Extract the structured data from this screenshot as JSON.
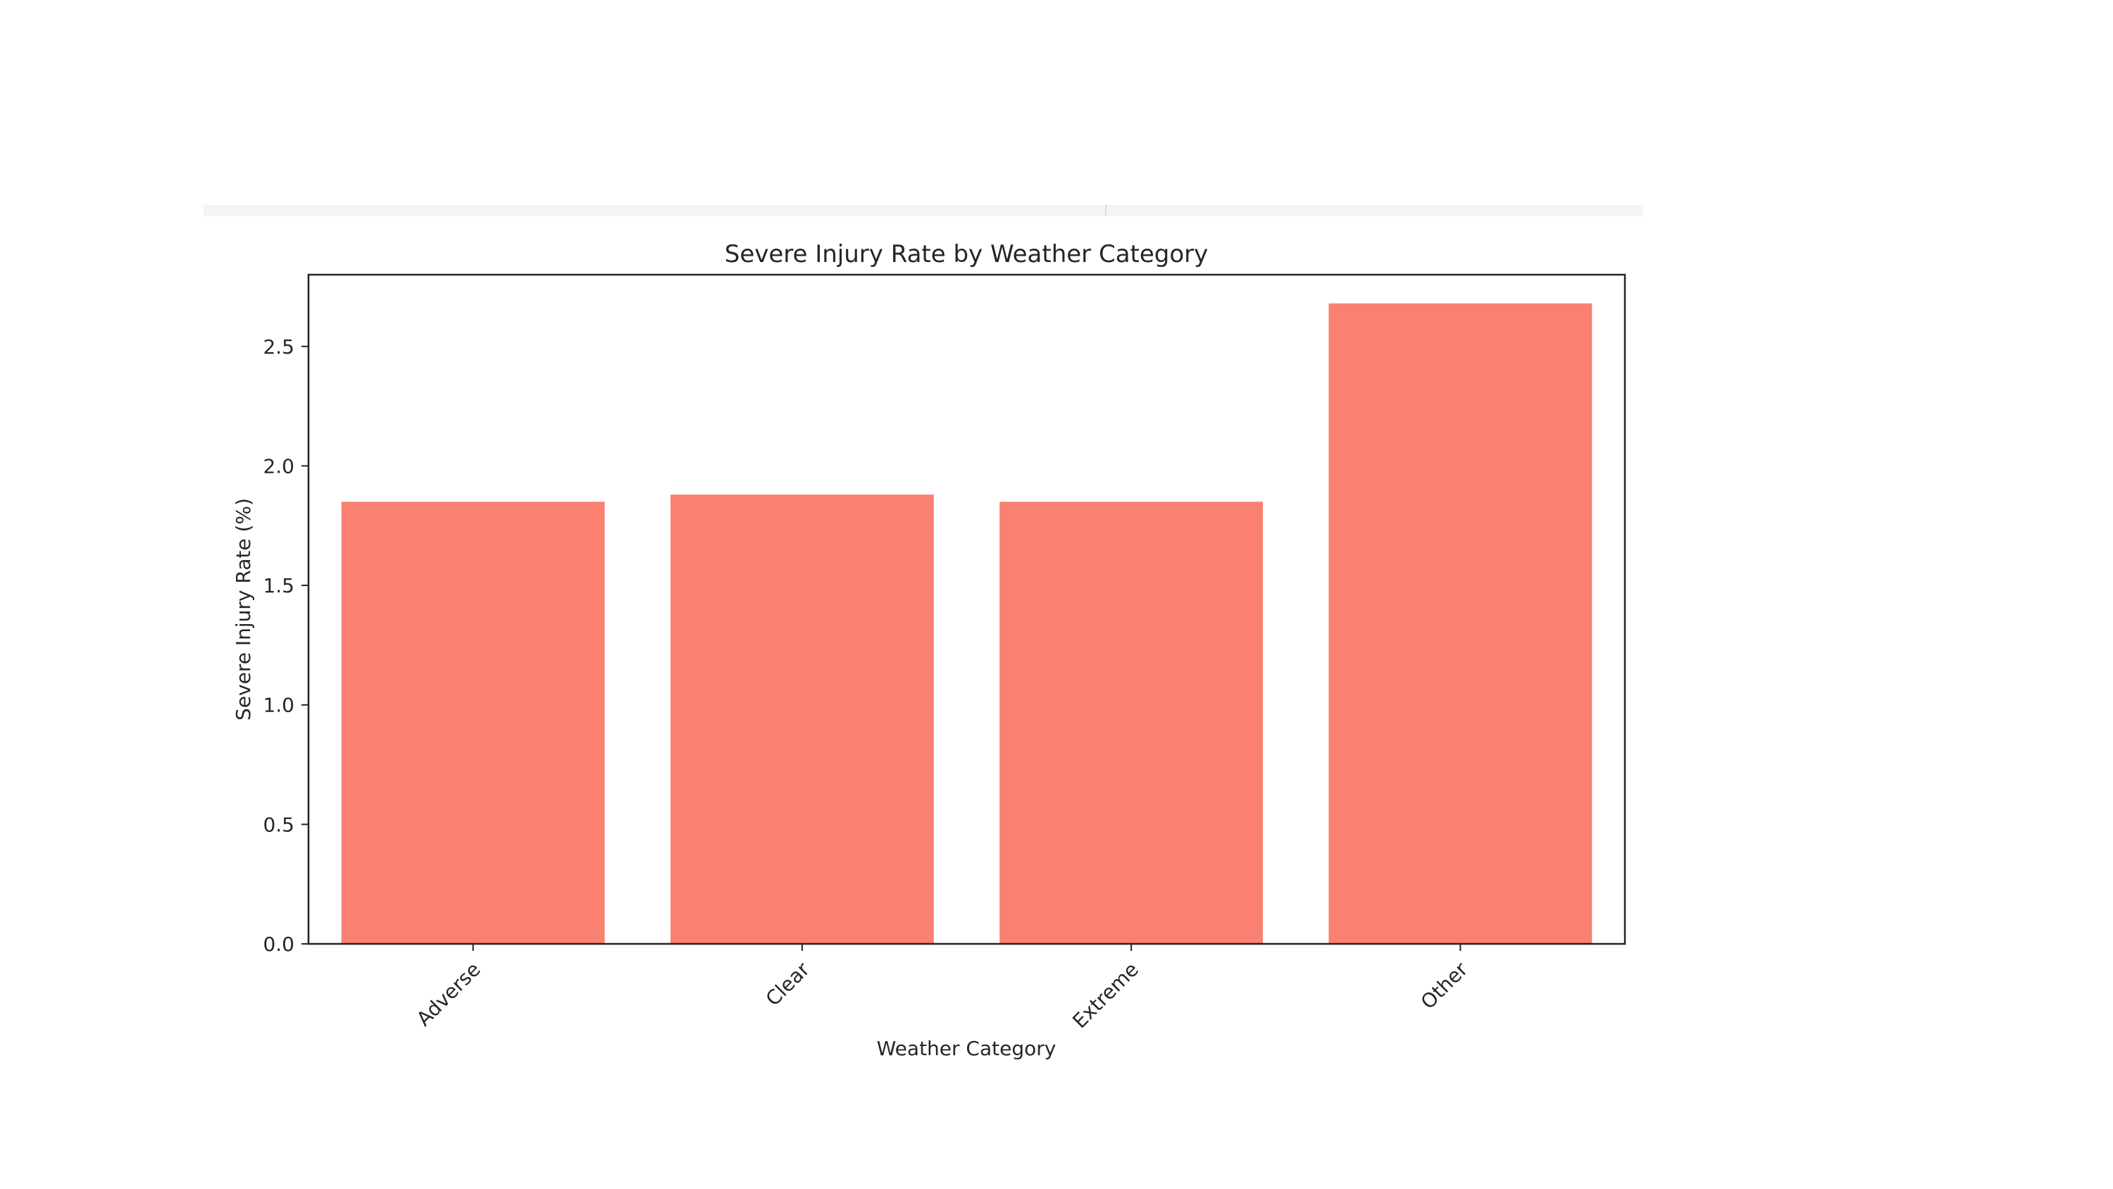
{
  "chart_data": {
    "type": "bar",
    "title": "Severe Injury Rate by Weather Category",
    "xlabel": "Weather Category",
    "ylabel": "Severe Injury Rate (%)",
    "categories": [
      "Adverse",
      "Clear",
      "Extreme",
      "Other"
    ],
    "values": [
      1.85,
      1.88,
      1.85,
      2.68
    ],
    "ylim": [
      0,
      2.8
    ],
    "yticks": [
      0.0,
      0.5,
      1.0,
      1.5,
      2.0,
      2.5
    ],
    "ytick_labels": [
      "0.0",
      "0.5",
      "1.0",
      "1.5",
      "2.0",
      "2.5"
    ],
    "bar_color": "#fa8072",
    "grid": false,
    "legend": false
  }
}
